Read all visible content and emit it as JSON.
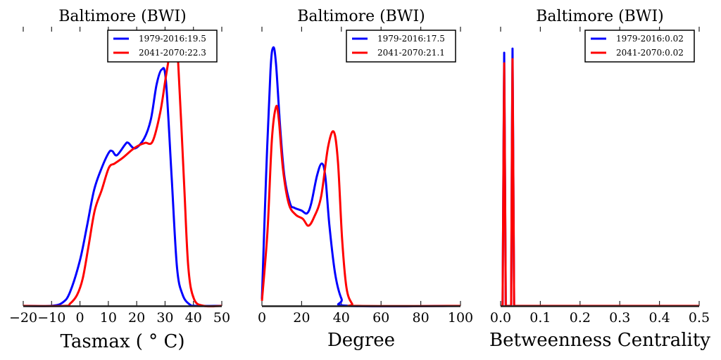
{
  "chart_data": [
    {
      "type": "line",
      "title": "Baltimore (BWI)",
      "xlabel": "Tasmax ($^\\circ$C)",
      "xlabel_display": "Tasmax ( ° C)",
      "ylabel": "",
      "xlim": [
        -20,
        50
      ],
      "ylim": [
        0,
        1
      ],
      "xticks": [
        -20,
        -10,
        0,
        10,
        20,
        30,
        40,
        50
      ],
      "xtick_labels": [
        "−20",
        "−10",
        "0",
        "10",
        "20",
        "30",
        "40",
        "50"
      ],
      "grid": false,
      "legend_position": "top-right",
      "series": [
        {
          "name": "1979-2016:19.5",
          "color": "#0000ff",
          "x": [
            -20,
            -10,
            -6,
            -3.5,
            0,
            2.5,
            5,
            7.7,
            10.2,
            11.4,
            13,
            16,
            17,
            19.4,
            22.6,
            25,
            27,
            28.8,
            30.3,
            32.3,
            34.2,
            36.2,
            38.7,
            41,
            50
          ],
          "y": [
            0,
            0,
            0.013,
            0.05,
            0.165,
            0.29,
            0.42,
            0.5,
            0.555,
            0.56,
            0.545,
            0.585,
            0.59,
            0.57,
            0.605,
            0.675,
            0.8,
            0.855,
            0.815,
            0.47,
            0.14,
            0.04,
            0.005,
            0,
            0
          ]
        },
        {
          "name": "2041-2070:22.3",
          "color": "#ff0000",
          "x": [
            -20,
            -5.5,
            -3.5,
            -1,
            1,
            3,
            5.2,
            7.7,
            10.2,
            12.2,
            15,
            18.4,
            20.6,
            23,
            25.6,
            28.3,
            30.3,
            32,
            33.5,
            34.5,
            36.7,
            38.2,
            40.2,
            43.7,
            50
          ],
          "y": [
            0,
            0,
            0.008,
            0.04,
            0.1,
            0.215,
            0.345,
            0.42,
            0.5,
            0.515,
            0.535,
            0.565,
            0.58,
            0.59,
            0.595,
            0.7,
            0.83,
            0.93,
            0.965,
            0.905,
            0.445,
            0.14,
            0.025,
            0,
            0
          ]
        }
      ]
    },
    {
      "type": "line",
      "title": "Baltimore (BWI)",
      "xlabel": "Degree",
      "xlabel_display": "Degree",
      "ylabel": "",
      "xlim": [
        0,
        100
      ],
      "ylim": [
        0,
        1
      ],
      "xticks": [
        0,
        20,
        40,
        60,
        80,
        100
      ],
      "xtick_labels": [
        "0",
        "20",
        "40",
        "60",
        "80",
        "100"
      ],
      "grid": false,
      "legend_position": "top-right",
      "series": [
        {
          "name": "1979-2016:17.5",
          "color": "#0000ff",
          "x": [
            0,
            2.1,
            4.3,
            5.7,
            7.1,
            9.2,
            11.3,
            14.2,
            16.3,
            19.9,
            22.7,
            24.8,
            27.7,
            30.1,
            31.9,
            34,
            36.9,
            40.1,
            43.6,
            100
          ],
          "y": [
            0.025,
            0.47,
            0.85,
            0.935,
            0.875,
            0.645,
            0.47,
            0.37,
            0.355,
            0.345,
            0.335,
            0.37,
            0.47,
            0.515,
            0.47,
            0.29,
            0.115,
            0.025,
            0,
            0
          ]
        },
        {
          "name": "2041-2070:21.1",
          "color": "#ff0000",
          "x": [
            0,
            2.8,
            5,
            7.1,
            8.5,
            10.6,
            13.5,
            17,
            20.6,
            23.4,
            26.2,
            29.8,
            33.3,
            36.2,
            38.3,
            40.4,
            42.6,
            45.4,
            48.2,
            100
          ],
          "y": [
            0.018,
            0.27,
            0.6,
            0.72,
            0.675,
            0.495,
            0.37,
            0.33,
            0.315,
            0.29,
            0.32,
            0.395,
            0.575,
            0.63,
            0.52,
            0.24,
            0.065,
            0.008,
            0,
            0
          ]
        }
      ]
    },
    {
      "type": "line",
      "title": "Baltimore (BWI)",
      "xlabel": "Betweenness Centrality",
      "xlabel_display": "Betweenness Centrality",
      "ylabel": "",
      "xlim": [
        0,
        0.5
      ],
      "ylim": [
        0,
        1
      ],
      "xticks": [
        0,
        0.1,
        0.2,
        0.3,
        0.4,
        0.5
      ],
      "xtick_labels": [
        "0.0",
        "0.1",
        "0.2",
        "0.3",
        "0.4",
        "0.5"
      ],
      "grid": false,
      "legend_position": "top-right",
      "series": [
        {
          "name": "1979-2016:0.02",
          "color": "#0000ff",
          "x": [
            0,
            0.005,
            0.0075,
            0.009,
            0.0105,
            0.013,
            0.0265,
            0.0285,
            0.03,
            0.0315,
            0.034,
            0.5
          ],
          "y": [
            0,
            0,
            0.6,
            0.916,
            0.6,
            0,
            0,
            0.6,
            0.931,
            0.6,
            0,
            0
          ]
        },
        {
          "name": "2041-2070:0.02",
          "color": "#ff0000",
          "x": [
            0,
            0.005,
            0.0075,
            0.009,
            0.0105,
            0.013,
            0.0265,
            0.0285,
            0.03,
            0.0315,
            0.034,
            0.5
          ],
          "y": [
            0,
            0,
            0.57,
            0.878,
            0.57,
            0,
            0,
            0.57,
            0.893,
            0.57,
            0,
            0
          ]
        }
      ]
    }
  ]
}
